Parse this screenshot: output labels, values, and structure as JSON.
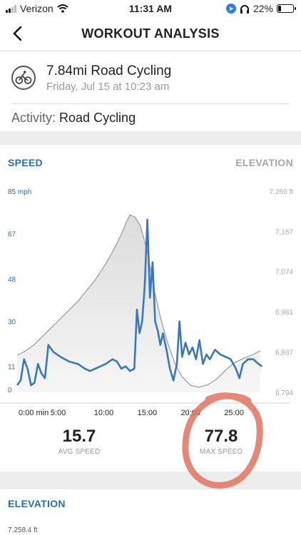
{
  "status_bar": {
    "carrier": "Verizon",
    "time": "11:31 AM",
    "battery_text": "22%",
    "battery_level": 0.22
  },
  "nav": {
    "title": "WORKOUT ANALYSIS",
    "back_icon": "chevron-left-icon"
  },
  "workout": {
    "title": "7.84mi Road Cycling",
    "date": "Friday, Jul 15 at 10:23 am",
    "activity_label": "Activity:",
    "activity_value": "Road Cycling",
    "icon": "bicycle-icon"
  },
  "tabs": {
    "speed": "SPEED",
    "elevation": "ELEVATION"
  },
  "stats": {
    "avg_value": "15.7",
    "avg_label": "AVG SPEED",
    "max_value": "77.8",
    "max_label": "MAX SPEED"
  },
  "elevation_section": {
    "title": "ELEVATION",
    "first_tick": "7,258.4 ft"
  },
  "colors": {
    "accent": "#2d6db2",
    "speed_line": "#3a78b8",
    "elevation_line": "#999999",
    "elevation_fill": "#eaeaea",
    "annotation": "#e0735f"
  },
  "chart_data": {
    "type": "line",
    "x_unit": "minutes",
    "x_ticks": [
      {
        "value": 0,
        "label": "0:00 min"
      },
      {
        "value": 5,
        "label": "5:00"
      },
      {
        "value": 10,
        "label": "10:00"
      },
      {
        "value": 15,
        "label": "15:00"
      },
      {
        "value": 20,
        "label": "20:00"
      },
      {
        "value": 25,
        "label": "25:00"
      }
    ],
    "x_range": [
      0,
      29
    ],
    "y_left": {
      "range": [
        0,
        85
      ],
      "ticks": [
        {
          "value": 0,
          "label": "0"
        },
        {
          "value": 11,
          "label": "11"
        },
        {
          "value": 30,
          "label": "30"
        },
        {
          "value": 48,
          "label": "48"
        },
        {
          "value": 67,
          "label": "67"
        },
        {
          "value": 85,
          "label": "85 mph"
        }
      ]
    },
    "y_right": {
      "range": [
        6794,
        7260
      ],
      "ticks": [
        {
          "value": 6794,
          "label": "6,794"
        },
        {
          "value": 6887,
          "label": "6,887"
        },
        {
          "value": 6981,
          "label": "6,981"
        },
        {
          "value": 7074,
          "label": "7,074"
        },
        {
          "value": 7167,
          "label": "7,167"
        },
        {
          "value": 7260,
          "label": "7,260 ft"
        }
      ]
    },
    "series": [
      {
        "name": "",
        "axis": "left",
        "points": [
          [
            0,
            3
          ],
          [
            0.4,
            5
          ],
          [
            0.8,
            14
          ],
          [
            1.2,
            10
          ],
          [
            1.6,
            3
          ],
          [
            2,
            4
          ],
          [
            2.4,
            12
          ],
          [
            2.8,
            8
          ],
          [
            3.2,
            6
          ],
          [
            3.6,
            20
          ],
          [
            4.2,
            17
          ],
          [
            5,
            15
          ],
          [
            6,
            13
          ],
          [
            7,
            12
          ],
          [
            7.8,
            10
          ],
          [
            8.4,
            9
          ],
          [
            9,
            10
          ],
          [
            9.6,
            11
          ],
          [
            10.2,
            12
          ],
          [
            11,
            14
          ],
          [
            11.5,
            13
          ],
          [
            12,
            10
          ],
          [
            12.5,
            11
          ],
          [
            13,
            9
          ],
          [
            13.5,
            10
          ],
          [
            13.8,
            35
          ],
          [
            14.1,
            25
          ],
          [
            14.4,
            30
          ],
          [
            14.7,
            45
          ],
          [
            15,
            73
          ],
          [
            15.3,
            40
          ],
          [
            15.6,
            55
          ],
          [
            15.9,
            30
          ],
          [
            16.2,
            26
          ],
          [
            16.5,
            20
          ],
          [
            16.8,
            25
          ],
          [
            17.2,
            18
          ],
          [
            17.6,
            10
          ],
          [
            18,
            5
          ],
          [
            18.4,
            12
          ],
          [
            18.7,
            30
          ],
          [
            19,
            15
          ],
          [
            19.4,
            21
          ],
          [
            19.8,
            16
          ],
          [
            20.2,
            19
          ],
          [
            20.6,
            14
          ],
          [
            21,
            22
          ],
          [
            21.4,
            12
          ],
          [
            21.8,
            16
          ],
          [
            22.2,
            14
          ],
          [
            22.8,
            18
          ],
          [
            23.4,
            16
          ],
          [
            24,
            15
          ],
          [
            24.6,
            14
          ],
          [
            25.2,
            10
          ],
          [
            25.6,
            6
          ],
          [
            26,
            12
          ],
          [
            26.6,
            14
          ],
          [
            27.2,
            14
          ],
          [
            27.8,
            12
          ],
          [
            28.2,
            11
          ]
        ]
      },
      {
        "name": "",
        "axis": "right",
        "points": [
          [
            0,
            6880
          ],
          [
            1,
            6890
          ],
          [
            2,
            6905
          ],
          [
            3,
            6925
          ],
          [
            4,
            6945
          ],
          [
            5,
            6965
          ],
          [
            6,
            6985
          ],
          [
            7,
            7005
          ],
          [
            8,
            7030
          ],
          [
            9,
            7055
          ],
          [
            10,
            7085
          ],
          [
            11,
            7120
          ],
          [
            12,
            7160
          ],
          [
            12.6,
            7190
          ],
          [
            13,
            7205
          ],
          [
            13.6,
            7200
          ],
          [
            14.2,
            7180
          ],
          [
            15,
            7120
          ],
          [
            15.8,
            7030
          ],
          [
            16.6,
            6960
          ],
          [
            17.4,
            6905
          ],
          [
            18.2,
            6860
          ],
          [
            19,
            6830
          ],
          [
            20,
            6810
          ],
          [
            21,
            6806
          ],
          [
            22,
            6812
          ],
          [
            23,
            6825
          ],
          [
            24,
            6845
          ],
          [
            25,
            6862
          ],
          [
            26,
            6872
          ],
          [
            27,
            6880
          ],
          [
            28,
            6890
          ]
        ]
      }
    ]
  }
}
